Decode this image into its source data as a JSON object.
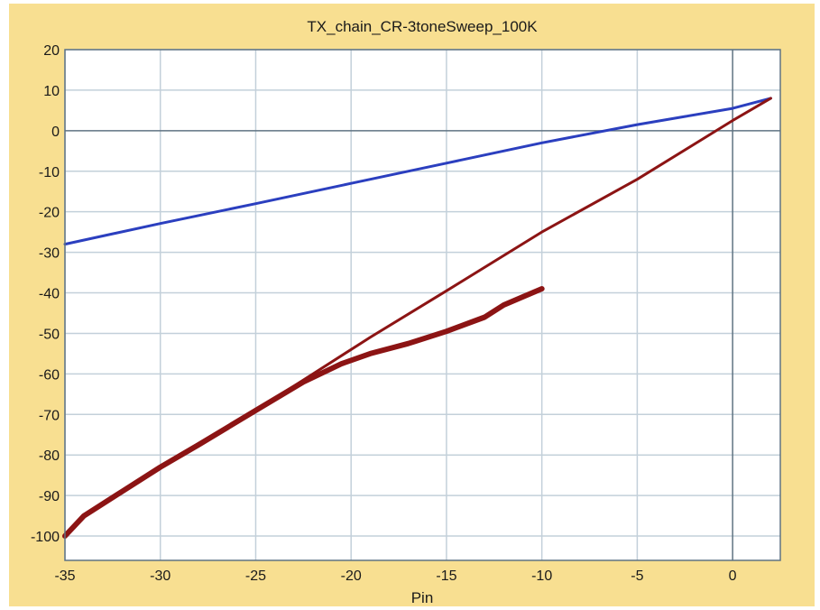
{
  "colors": {
    "background": "#f8df91",
    "plot_area": "#ffffff",
    "grid": "#c3d0da",
    "axis": "#5f7382",
    "series_1": "#2b3fbf",
    "series_2": "#8c1414",
    "series_3": "#8c1414"
  },
  "chart_data": {
    "type": "line",
    "title": "TX_chain_CR-3toneSweep_100K",
    "xlabel": "Pin",
    "ylabel": "",
    "xlim": [
      -35,
      2.5
    ],
    "ylim": [
      -106,
      20
    ],
    "x_ticks": [
      -35,
      -30,
      -25,
      -20,
      -15,
      -10,
      -5,
      0
    ],
    "y_ticks": [
      20,
      10,
      0,
      -10,
      -20,
      -30,
      -40,
      -50,
      -60,
      -70,
      -80,
      -90,
      -100
    ],
    "grid": true,
    "legend": "none",
    "series": [
      {
        "color_key": "series_1",
        "line_width": 3,
        "points": [
          [
            -35,
            -28
          ],
          [
            -30,
            -22.9
          ],
          [
            -25,
            -18
          ],
          [
            -20,
            -13
          ],
          [
            -15,
            -8
          ],
          [
            -10,
            -3
          ],
          [
            -5,
            1.5
          ],
          [
            0,
            5.5
          ],
          [
            2,
            8
          ]
        ]
      },
      {
        "color_key": "series_2",
        "line_width": 3,
        "points": [
          [
            -35,
            -100
          ],
          [
            -34,
            -95
          ],
          [
            -32,
            -89
          ],
          [
            -30,
            -83
          ],
          [
            -28,
            -77.5
          ],
          [
            -25,
            -69
          ],
          [
            -22.5,
            -61.5
          ],
          [
            -19,
            -51
          ],
          [
            -15,
            -39.5
          ],
          [
            -10,
            -25
          ],
          [
            -5,
            -12
          ],
          [
            0,
            2.5
          ],
          [
            2,
            8
          ]
        ]
      },
      {
        "color_key": "series_3",
        "line_width": 6,
        "points": [
          [
            -35,
            -100
          ],
          [
            -34,
            -95
          ],
          [
            -32,
            -89
          ],
          [
            -30,
            -83
          ],
          [
            -28,
            -77.5
          ],
          [
            -25,
            -69
          ],
          [
            -22.5,
            -62
          ],
          [
            -20.5,
            -57.5
          ],
          [
            -19,
            -55
          ],
          [
            -17,
            -52.5
          ],
          [
            -15,
            -49.5
          ],
          [
            -13,
            -46
          ],
          [
            -12,
            -43
          ],
          [
            -11,
            -41
          ],
          [
            -10,
            -39
          ]
        ]
      }
    ]
  }
}
